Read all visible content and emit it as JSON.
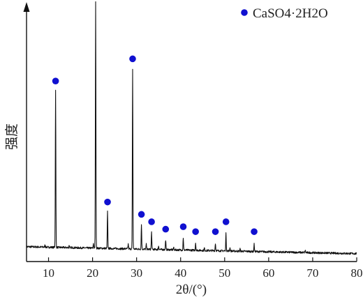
{
  "chart_data": {
    "type": "line",
    "title": "",
    "xlabel": "2θ/(°)",
    "ylabel": "强度",
    "xlim": [
      5,
      80
    ],
    "x_ticks": [
      10,
      20,
      30,
      40,
      50,
      60,
      70,
      80
    ],
    "y_ticks_shown": false,
    "legend": {
      "position": "top-right",
      "marker": "blue circle",
      "label": "CaSO4·2H2O"
    },
    "colors": {
      "line": "#111111",
      "marker": "#1010d0"
    },
    "baseline_relative_intensity": 0.06,
    "peaks": [
      {
        "two_theta": 11.6,
        "relative_intensity": 0.64
      },
      {
        "two_theta": 20.7,
        "relative_intensity": 1.0
      },
      {
        "two_theta": 23.4,
        "relative_intensity": 0.15
      },
      {
        "two_theta": 29.1,
        "relative_intensity": 0.73
      },
      {
        "two_theta": 31.1,
        "relative_intensity": 0.1
      },
      {
        "two_theta": 33.4,
        "relative_intensity": 0.07
      },
      {
        "two_theta": 36.6,
        "relative_intensity": 0.04
      },
      {
        "two_theta": 40.6,
        "relative_intensity": 0.05
      },
      {
        "two_theta": 43.4,
        "relative_intensity": 0.03
      },
      {
        "two_theta": 47.9,
        "relative_intensity": 0.03
      },
      {
        "two_theta": 50.3,
        "relative_intensity": 0.07
      },
      {
        "two_theta": 56.7,
        "relative_intensity": 0.03
      }
    ],
    "marked_peaks_2theta": [
      11.6,
      20.7,
      23.4,
      29.1,
      31.1,
      33.4,
      36.6,
      40.6,
      43.4,
      47.9,
      50.3,
      56.7
    ],
    "minor_peaks": [
      {
        "two_theta": 9.2,
        "relative_intensity": 0.01
      },
      {
        "two_theta": 14.7,
        "relative_intensity": 0.01
      },
      {
        "two_theta": 20.2,
        "relative_intensity": 0.02
      },
      {
        "two_theta": 28.1,
        "relative_intensity": 0.02
      },
      {
        "two_theta": 32.2,
        "relative_intensity": 0.02
      },
      {
        "two_theta": 35.0,
        "relative_intensity": 0.015
      },
      {
        "two_theta": 38.4,
        "relative_intensity": 0.01
      },
      {
        "two_theta": 45.4,
        "relative_intensity": 0.01
      },
      {
        "two_theta": 51.2,
        "relative_intensity": 0.015
      },
      {
        "two_theta": 53.5,
        "relative_intensity": 0.01
      },
      {
        "two_theta": 68.3,
        "relative_intensity": 0.01
      }
    ]
  }
}
